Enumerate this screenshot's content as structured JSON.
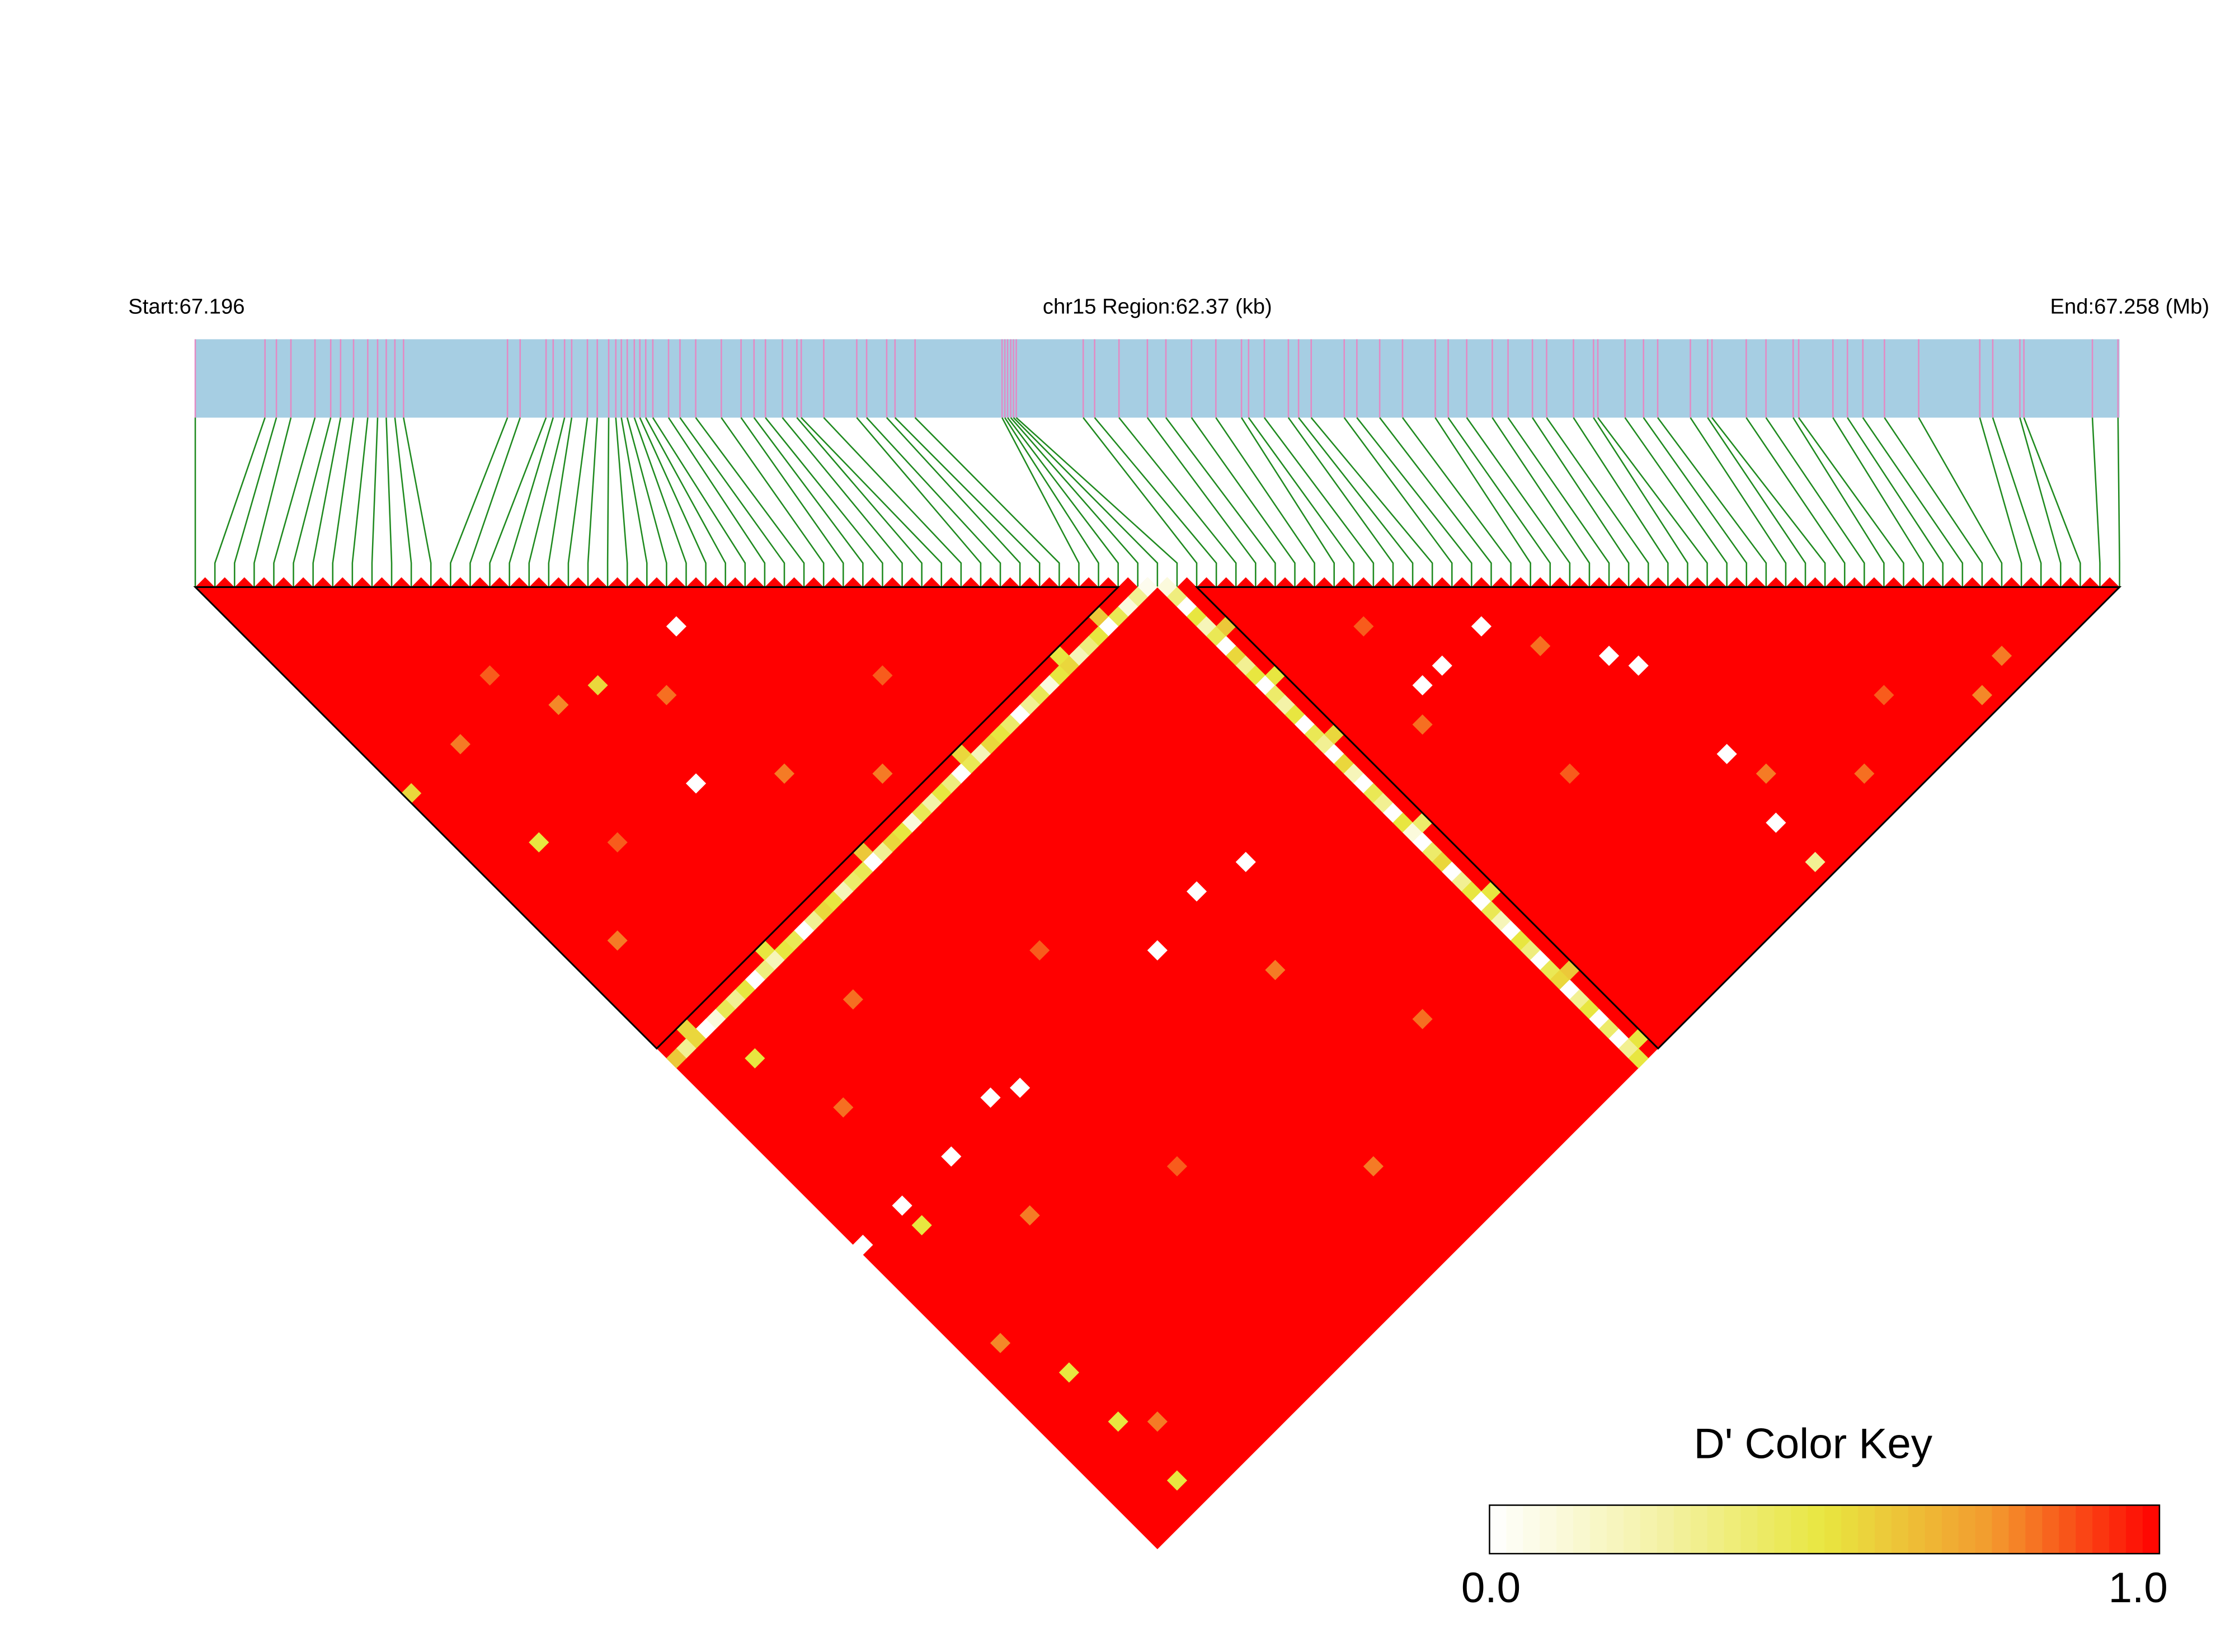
{
  "chart_data": {
    "type": "ld_heatmap",
    "start_label": "Start:67.196",
    "title": "chr15 Region:62.37 (kb)",
    "end_label": "End:67.258 (Mb)",
    "xlim": [
      0,
      62.37
    ],
    "positions_kb": [
      0,
      2.26,
      2.63,
      3.1,
      3.88,
      4.39,
      4.71,
      5.13,
      5.59,
      5.91,
      6.19,
      6.47,
      6.75,
      10.12,
      10.53,
      11.37,
      11.6,
      11.97,
      12.2,
      12.71,
      13.03,
      13.4,
      13.63,
      13.81,
      14.0,
      14.23,
      14.41,
      14.6,
      14.83,
      15.34,
      15.71,
      16.22,
      17.05,
      17.69,
      18.11,
      18.48,
      19.03,
      19.5,
      19.64,
      20.37,
      21.44,
      21.76,
      22.41,
      22.68,
      23.33,
      26.15,
      26.24,
      26.33,
      26.43,
      26.52,
      26.61,
      28.78,
      29.15,
      29.94,
      30.86,
      31.46,
      32.29,
      33.08,
      33.91,
      34.14,
      34.65,
      35.43,
      35.76,
      36.17,
      37.24,
      37.65,
      38.39,
      39.13,
      40.19,
      40.61,
      41.21,
      42.04,
      42.55,
      43.34,
      43.8,
      44.67,
      45.32,
      45.46,
      46.34,
      46.94,
      47.4,
      48.46,
      49.02,
      49.16,
      50.27,
      50.91,
      51.79,
      51.97,
      53.08,
      53.55,
      54.05,
      54.75,
      55.86,
      57.84,
      58.26,
      59.14,
      59.27,
      61.49,
      62.32
    ],
    "blocks": [
      [
        0,
        47
      ],
      [
        51,
        98
      ]
    ],
    "cells": [
      [
        48,
        49,
        0.05
      ],
      [
        47,
        49,
        0.3
      ],
      [
        46,
        49,
        0.1
      ],
      [
        45,
        49,
        0.45
      ],
      [
        44,
        49,
        0.0
      ],
      [
        43,
        49,
        0.5
      ],
      [
        42,
        49,
        0.35
      ],
      [
        41,
        49,
        0.2
      ],
      [
        40,
        49,
        0.55
      ],
      [
        39,
        49,
        0.5
      ],
      [
        38,
        49,
        0.1
      ],
      [
        37,
        49,
        0.45
      ],
      [
        36,
        49,
        0.3
      ],
      [
        35,
        49,
        0.0
      ],
      [
        34,
        49,
        0.4
      ],
      [
        33,
        49,
        0.5
      ],
      [
        32,
        49,
        0.55
      ],
      [
        31,
        49,
        0.2
      ],
      [
        30,
        49,
        0.45
      ],
      [
        29,
        49,
        0.0
      ],
      [
        28,
        49,
        0.35
      ],
      [
        27,
        49,
        0.5
      ],
      [
        26,
        49,
        0.25
      ],
      [
        25,
        49,
        0.45
      ],
      [
        24,
        49,
        0.1
      ],
      [
        23,
        49,
        0.5
      ],
      [
        22,
        49,
        0.55
      ],
      [
        21,
        49,
        0.3
      ],
      [
        20,
        49,
        0.0
      ],
      [
        19,
        49,
        0.45
      ],
      [
        18,
        49,
        0.4
      ],
      [
        17,
        49,
        0.2
      ],
      [
        16,
        49,
        0.5
      ],
      [
        15,
        49,
        0.55
      ],
      [
        14,
        49,
        0.3
      ],
      [
        13,
        49,
        0.0
      ],
      [
        12,
        49,
        0.45
      ],
      [
        11,
        49,
        0.5
      ],
      [
        10,
        49,
        0.2
      ],
      [
        9,
        49,
        0.35
      ],
      [
        8,
        49,
        0.0
      ],
      [
        7,
        49,
        0.5
      ],
      [
        6,
        49,
        0.3
      ],
      [
        5,
        49,
        0.45
      ],
      [
        4,
        49,
        0.1
      ],
      [
        3,
        49,
        0.0
      ],
      [
        2,
        49,
        0.55
      ],
      [
        1,
        49,
        0.3
      ],
      [
        0,
        49,
        0.6
      ],
      [
        49,
        50,
        0.1
      ],
      [
        49,
        51,
        0.35
      ],
      [
        49,
        52,
        0.0
      ],
      [
        49,
        53,
        0.5
      ],
      [
        49,
        54,
        0.2
      ],
      [
        49,
        55,
        0.45
      ],
      [
        49,
        56,
        0.0
      ],
      [
        49,
        57,
        0.55
      ],
      [
        49,
        58,
        0.3
      ],
      [
        49,
        59,
        0.5
      ],
      [
        49,
        60,
        0.0
      ],
      [
        49,
        61,
        0.4
      ],
      [
        49,
        62,
        0.25
      ],
      [
        49,
        63,
        0.5
      ],
      [
        49,
        64,
        0.0
      ],
      [
        49,
        65,
        0.45
      ],
      [
        49,
        66,
        0.3
      ],
      [
        49,
        67,
        0.0
      ],
      [
        49,
        68,
        0.55
      ],
      [
        49,
        69,
        0.2
      ],
      [
        49,
        70,
        0.0
      ],
      [
        49,
        71,
        0.45
      ],
      [
        49,
        72,
        0.3
      ],
      [
        49,
        73,
        0.0
      ],
      [
        49,
        74,
        0.5
      ],
      [
        49,
        75,
        0.1
      ],
      [
        49,
        76,
        0.0
      ],
      [
        49,
        77,
        0.4
      ],
      [
        49,
        78,
        0.55
      ],
      [
        49,
        79,
        0.0
      ],
      [
        49,
        80,
        0.3
      ],
      [
        49,
        81,
        0.5
      ],
      [
        49,
        82,
        0.0
      ],
      [
        49,
        83,
        0.45
      ],
      [
        49,
        84,
        0.2
      ],
      [
        49,
        85,
        0.0
      ],
      [
        49,
        86,
        0.5
      ],
      [
        49,
        87,
        0.35
      ],
      [
        49,
        88,
        0.0
      ],
      [
        49,
        89,
        0.45
      ],
      [
        49,
        90,
        0.55
      ],
      [
        49,
        91,
        0.0
      ],
      [
        49,
        92,
        0.3
      ],
      [
        49,
        93,
        0.5
      ],
      [
        49,
        94,
        0.0
      ],
      [
        49,
        95,
        0.4
      ],
      [
        49,
        96,
        0.0
      ],
      [
        49,
        97,
        0.3
      ],
      [
        49,
        98,
        0.5
      ],
      [
        44,
        48,
        0.6
      ],
      [
        40,
        48,
        0.5
      ],
      [
        30,
        48,
        0.55
      ],
      [
        20,
        48,
        0.6
      ],
      [
        10,
        48,
        0.5
      ],
      [
        2,
        48,
        0.55
      ],
      [
        50,
        55,
        0.6
      ],
      [
        50,
        60,
        0.5
      ],
      [
        50,
        66,
        0.55
      ],
      [
        50,
        75,
        0.4
      ],
      [
        50,
        82,
        0.5
      ],
      [
        50,
        90,
        0.6
      ],
      [
        50,
        97,
        0.5
      ],
      [
        39,
        68,
        0.0
      ],
      [
        35,
        67,
        0.0
      ],
      [
        30,
        68,
        0.0
      ],
      [
        22,
        27,
        0.0
      ],
      [
        63,
        68,
        0.0
      ],
      [
        68,
        76,
        0.0
      ],
      [
        69,
        78,
        0.0
      ],
      [
        59,
        68,
        0.0
      ],
      [
        57,
        68,
        0.0
      ],
      [
        69,
        87,
        0.0
      ],
      [
        68,
        93,
        0.0
      ],
      [
        68,
        97,
        0.3
      ],
      [
        16,
        68,
        0.0
      ],
      [
        14,
        67,
        0.0
      ],
      [
        9,
        68,
        0.0
      ],
      [
        4,
        68,
        0.0
      ],
      [
        4,
        70,
        0.5
      ],
      [
        0,
        68,
        0.0
      ],
      [
        4,
        90,
        0.5
      ],
      [
        4,
        96,
        0.5
      ],
      [
        4,
        31,
        0.5
      ],
      [
        0,
        22,
        0.55
      ],
      [
        15,
        26,
        0.55
      ],
      [
        4,
        53,
        0.5
      ],
      [
        4,
        85,
        0.5
      ],
      [
        15,
        36,
        0.0
      ],
      [
        5,
        22,
        0.8
      ],
      [
        10,
        20,
        0.85
      ],
      [
        12,
        25,
        0.78
      ],
      [
        18,
        30,
        0.82
      ],
      [
        20,
        40,
        0.8
      ],
      [
        8,
        35,
        0.85
      ],
      [
        25,
        45,
        0.8
      ],
      [
        30,
        40,
        0.85
      ],
      [
        6,
        60,
        0.82
      ],
      [
        10,
        75,
        0.8
      ],
      [
        20,
        80,
        0.85
      ],
      [
        30,
        90,
        0.8
      ],
      [
        55,
        70,
        0.82
      ],
      [
        60,
        80,
        0.85
      ],
      [
        70,
        90,
        0.8
      ],
      [
        75,
        95,
        0.82
      ],
      [
        80,
        92,
        0.85
      ],
      [
        85,
        97,
        0.78
      ],
      [
        3,
        40,
        0.8
      ],
      [
        12,
        55,
        0.82
      ],
      [
        24,
        62,
        0.85
      ],
      [
        35,
        75,
        0.8
      ],
      [
        40,
        85,
        0.82
      ],
      [
        2,
        80,
        0.78
      ],
      [
        6,
        92,
        0.8
      ],
      [
        57,
        62,
        0.85
      ],
      [
        65,
        72,
        0.82
      ],
      [
        88,
        96,
        0.8
      ]
    ],
    "color_key": {
      "title": "D' Color Key",
      "ticks": [
        {
          "value": 0,
          "label": "0.0"
        },
        {
          "value": 1,
          "label": "1.0"
        }
      ],
      "colors": [
        "#ffffff",
        "#f4f2a8",
        "#e8e640",
        "#f39a2e",
        "#ff0000"
      ]
    },
    "colors": {
      "bar": "#a6cee3",
      "snp_line": "#e38ac4",
      "connector": "#1f8a1f",
      "block": "#000000"
    }
  }
}
